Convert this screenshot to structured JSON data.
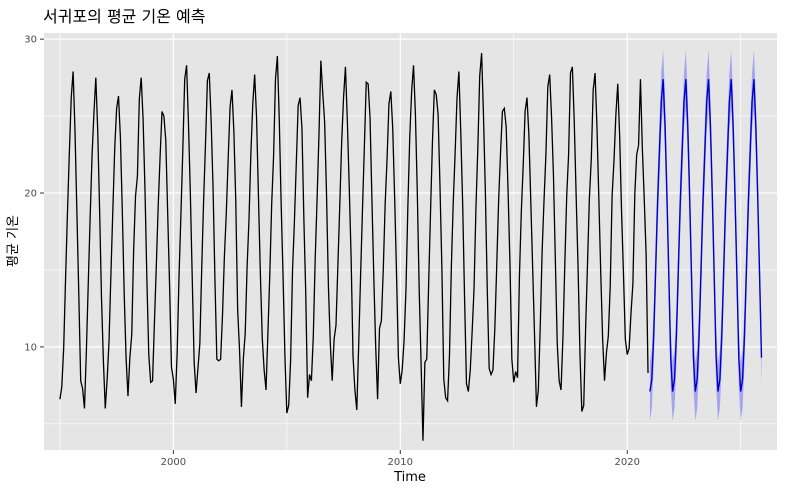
{
  "chart_data": {
    "type": "line",
    "title": "서귀포의 평균 기온 예측",
    "xlabel": "Time",
    "ylabel": "평균 기온",
    "xlim": [
      1994.3,
      2026.6
    ],
    "ylim": [
      3.3,
      30.4
    ],
    "x_ticks": [
      2000,
      2010,
      2020
    ],
    "x_tick_labels": [
      "2000",
      "2010",
      "2020"
    ],
    "y_ticks": [
      10,
      20,
      30
    ],
    "y_tick_labels": [
      "10",
      "20",
      "30"
    ],
    "grid": true,
    "legend": "none",
    "colors": {
      "panel_background": "#e5e5e5",
      "grid_line": "#ffffff",
      "observed": "#000000",
      "forecast": "#0000cc",
      "forecast_band": "#8f8ff2"
    },
    "series": [
      {
        "kind": "observed",
        "start_year": 1995,
        "frequency": "monthly",
        "yearly_values": [
          [
            6.6,
            7.4,
            9.9,
            14.4,
            18.7,
            22.6,
            26.2,
            27.9,
            24.0,
            18.7,
            13.4,
            7.8
          ],
          [
            7.3,
            6.0,
            9.7,
            14.1,
            18.4,
            22.4,
            25.2,
            27.5,
            24.1,
            18.9,
            13.2,
            9.1
          ],
          [
            6.0,
            7.9,
            10.4,
            14.8,
            18.9,
            22.9,
            25.5,
            26.3,
            23.6,
            18.9,
            13.5,
            9.3
          ],
          [
            6.8,
            9.3,
            10.8,
            16.3,
            19.8,
            21.1,
            26.1,
            27.5,
            24.8,
            20.2,
            14.4,
            9.5
          ],
          [
            7.7,
            7.8,
            11.6,
            15.3,
            19.2,
            22.4,
            25.3,
            25.0,
            23.4,
            18.7,
            14.0,
            8.7
          ],
          [
            7.9,
            6.3,
            9.6,
            14.6,
            18.6,
            22.8,
            27.4,
            28.3,
            24.5,
            19.9,
            14.4,
            9.0
          ],
          [
            7.0,
            8.6,
            10.2,
            15.1,
            19.5,
            23.2,
            27.3,
            27.8,
            24.6,
            20.3,
            14.3,
            9.2
          ],
          [
            9.1,
            9.2,
            12.1,
            15.9,
            18.7,
            22.3,
            25.6,
            26.7,
            24.0,
            19.5,
            12.4,
            9.8
          ],
          [
            6.1,
            9.2,
            10.9,
            15.2,
            18.3,
            22.6,
            25.8,
            27.7,
            24.9,
            19.8,
            14.8,
            10.6
          ],
          [
            8.5,
            7.2,
            10.9,
            14.7,
            19.3,
            22.4,
            27.4,
            28.9,
            24.8,
            19.3,
            14.6,
            9.4
          ],
          [
            5.7,
            6.2,
            9.1,
            14.9,
            18.1,
            21.9,
            25.7,
            26.2,
            24.2,
            18.4,
            13.5,
            6.7
          ],
          [
            8.2,
            7.8,
            10.7,
            15.7,
            19.6,
            23.8,
            28.6,
            26.5,
            24.6,
            19.9,
            13.9,
            10.2
          ],
          [
            7.8,
            10.5,
            11.4,
            15.3,
            19.2,
            23.3,
            26.2,
            28.2,
            24.7,
            20.4,
            15.8,
            9.4
          ],
          [
            7.2,
            5.9,
            10.1,
            14.6,
            18.9,
            23.0,
            27.2,
            27.1,
            24.9,
            19.6,
            14.5,
            10.0
          ],
          [
            6.6,
            11.2,
            11.7,
            15.0,
            19.3,
            22.2,
            25.8,
            26.6,
            24.2,
            19.8,
            14.8,
            9.3
          ],
          [
            7.6,
            8.5,
            10.4,
            13.7,
            19.1,
            23.6,
            26.6,
            28.3,
            25.1,
            20.0,
            13.7,
            8.9
          ],
          [
            3.9,
            9.0,
            9.2,
            14.1,
            18.8,
            23.3,
            26.7,
            26.4,
            25.1,
            20.4,
            15.1,
            7.9
          ],
          [
            6.7,
            6.5,
            9.4,
            15.2,
            19.4,
            22.6,
            26.2,
            27.9,
            23.9,
            19.2,
            13.1,
            7.6
          ],
          [
            7.1,
            8.5,
            11.0,
            13.8,
            19.0,
            22.9,
            27.6,
            29.1,
            25.0,
            20.0,
            13.7,
            8.6
          ],
          [
            8.2,
            8.5,
            11.2,
            15.3,
            19.5,
            22.6,
            25.3,
            25.5,
            24.3,
            20.1,
            15.4,
            9.2
          ],
          [
            7.7,
            8.4,
            8.0,
            14.6,
            18.8,
            21.8,
            25.3,
            26.2,
            23.8,
            19.5,
            15.1,
            10.7
          ],
          [
            6.1,
            7.2,
            11.3,
            16.2,
            19.5,
            22.5,
            26.9,
            27.7,
            24.9,
            21.1,
            15.6,
            10.2
          ],
          [
            7.8,
            7.2,
            10.6,
            15.4,
            19.8,
            22.5,
            27.8,
            28.2,
            24.6,
            19.8,
            15.2,
            9.6
          ],
          [
            5.8,
            6.2,
            11.2,
            15.4,
            19.7,
            22.2,
            26.7,
            27.8,
            24.3,
            19.6,
            14.8,
            10.5
          ],
          [
            7.8,
            9.6,
            10.7,
            13.9,
            19.8,
            22.1,
            25.1,
            27.1,
            23.7,
            18.8,
            14.8,
            10.5
          ],
          [
            9.5,
            9.9,
            12.2,
            14.1,
            19.9,
            22.5,
            23.1,
            27.4,
            22.9,
            19.6,
            16.0,
            8.3
          ]
        ]
      },
      {
        "kind": "forecast_mean",
        "start_year": 2021,
        "frequency": "monthly",
        "yearly_values": [
          7.1,
          7.9,
          10.7,
          14.9,
          19.2,
          22.6,
          25.9,
          27.4,
          24.4,
          19.8,
          14.6,
          9.3
        ]
      },
      {
        "kind": "forecast_interval",
        "start_year": 2021,
        "frequency": "monthly",
        "half_width": 1.9
      }
    ]
  }
}
